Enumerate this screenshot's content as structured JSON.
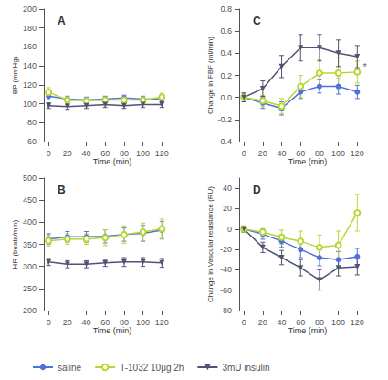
{
  "chart_data": [
    {
      "type": "line",
      "title": "A",
      "xlabel": "Time (min)",
      "ylabel": "BP (mmHg)",
      "x": [
        0,
        20,
        40,
        60,
        80,
        100,
        120
      ],
      "series": [
        {
          "name": "saline",
          "marker": "circle",
          "values": [
            108,
            105,
            104,
            105,
            106,
            105,
            105
          ],
          "errors": [
            4,
            3,
            3,
            3,
            3,
            3,
            3
          ]
        },
        {
          "name": "T-1032 10μg 2h",
          "marker": "open_circle",
          "values": [
            112,
            104,
            103,
            104,
            104,
            104,
            107
          ],
          "errors": [
            5,
            3,
            3,
            3,
            3,
            3,
            4
          ]
        },
        {
          "name": "3mU insulin",
          "marker": "triangle_down",
          "values": [
            98,
            97,
            98,
            99,
            98,
            99,
            99
          ],
          "errors": [
            3,
            3,
            3,
            3,
            3,
            3,
            3
          ]
        }
      ],
      "xlim": [
        -5,
        140
      ],
      "xticks": [
        0,
        20,
        40,
        60,
        80,
        100,
        120
      ],
      "ylim": [
        60,
        200
      ],
      "yticks": [
        60,
        80,
        100,
        120,
        140,
        160,
        180,
        200
      ],
      "grid": false,
      "legend": "lower left"
    },
    {
      "type": "line",
      "title": "C",
      "xlabel": "Time (min)",
      "ylabel": "Change in FBF (ml/min)",
      "x": [
        0,
        20,
        40,
        60,
        80,
        100,
        120
      ],
      "series": [
        {
          "name": "saline",
          "marker": "circle",
          "values": [
            0.0,
            -0.05,
            -0.1,
            0.05,
            0.1,
            0.1,
            0.05
          ],
          "errors": [
            0.04,
            0.05,
            0.06,
            0.06,
            0.06,
            0.07,
            0.06
          ]
        },
        {
          "name": "T-1032 10μg 2h",
          "marker": "open_circle",
          "values": [
            0.0,
            -0.03,
            -0.08,
            0.1,
            0.22,
            0.22,
            0.23
          ],
          "errors": [
            0.04,
            0.05,
            0.07,
            0.1,
            0.12,
            0.14,
            0.1
          ]
        },
        {
          "name": "3mU insulin",
          "marker": "triangle_down",
          "values": [
            0.0,
            0.08,
            0.28,
            0.45,
            0.45,
            0.4,
            0.37
          ],
          "errors": [
            0.04,
            0.07,
            0.1,
            0.12,
            0.12,
            0.12,
            0.1
          ]
        }
      ],
      "xlim": [
        -5,
        140
      ],
      "xticks": [
        0,
        20,
        40,
        60,
        80,
        100,
        120
      ],
      "ylim": [
        -0.4,
        0.8
      ],
      "yticks": [
        -0.4,
        -0.2,
        {
          "value": 0,
          "label": "0.0"
        },
        0.2,
        0.4,
        0.6,
        0.8
      ],
      "annotations": [
        {
          "text": "*",
          "x": 128,
          "y": 0.23
        }
      ],
      "grid": false
    },
    {
      "type": "line",
      "title": "B",
      "xlabel": "Time (min)",
      "ylabel": "HR (beats/min)",
      "x": [
        0,
        20,
        40,
        60,
        80,
        100,
        120
      ],
      "series": [
        {
          "name": "saline",
          "marker": "circle",
          "values": [
            362,
            367,
            367,
            368,
            372,
            375,
            382
          ],
          "errors": [
            12,
            12,
            12,
            15,
            15,
            18,
            20
          ]
        },
        {
          "name": "T-1032 10μg 2h",
          "marker": "open_circle",
          "values": [
            358,
            362,
            362,
            365,
            372,
            378,
            385
          ],
          "errors": [
            12,
            12,
            12,
            18,
            20,
            20,
            22
          ]
        },
        {
          "name": "3mU insulin",
          "marker": "triangle_down",
          "values": [
            310,
            305,
            305,
            308,
            310,
            310,
            308
          ],
          "errors": [
            8,
            8,
            8,
            8,
            10,
            10,
            10
          ]
        }
      ],
      "xlim": [
        -5,
        140
      ],
      "xticks": [
        0,
        20,
        40,
        60,
        80,
        100,
        120
      ],
      "ylim": [
        200,
        500
      ],
      "yticks": [
        200,
        250,
        300,
        350,
        400,
        450,
        500
      ],
      "grid": false
    },
    {
      "type": "line",
      "title": "D",
      "xlabel": "Time (min)",
      "ylabel": "Change in Vascular resistance (RU)",
      "x": [
        0,
        20,
        40,
        60,
        80,
        100,
        120
      ],
      "series": [
        {
          "name": "saline",
          "marker": "circle",
          "values": [
            0,
            -5,
            -12,
            -20,
            -28,
            -30,
            -27
          ],
          "errors": [
            3,
            5,
            6,
            8,
            8,
            8,
            8
          ]
        },
        {
          "name": "T-1032 10μg 2h",
          "marker": "open_circle",
          "values": [
            0,
            -3,
            -8,
            -12,
            -18,
            -16,
            16
          ],
          "errors": [
            3,
            5,
            7,
            10,
            12,
            14,
            18
          ]
        },
        {
          "name": "3mU insulin",
          "marker": "triangle_down",
          "values": [
            0,
            -18,
            -28,
            -38,
            -50,
            -38,
            -37
          ],
          "errors": [
            3,
            5,
            7,
            8,
            10,
            8,
            8
          ]
        }
      ],
      "xlim": [
        -5,
        140
      ],
      "xticks": [
        0,
        20,
        40,
        60,
        80,
        100,
        120
      ],
      "ylim": [
        -80,
        50
      ],
      "yticks": [
        -80,
        -60,
        -40,
        -20,
        0,
        20,
        40
      ],
      "grid": false
    }
  ]
}
